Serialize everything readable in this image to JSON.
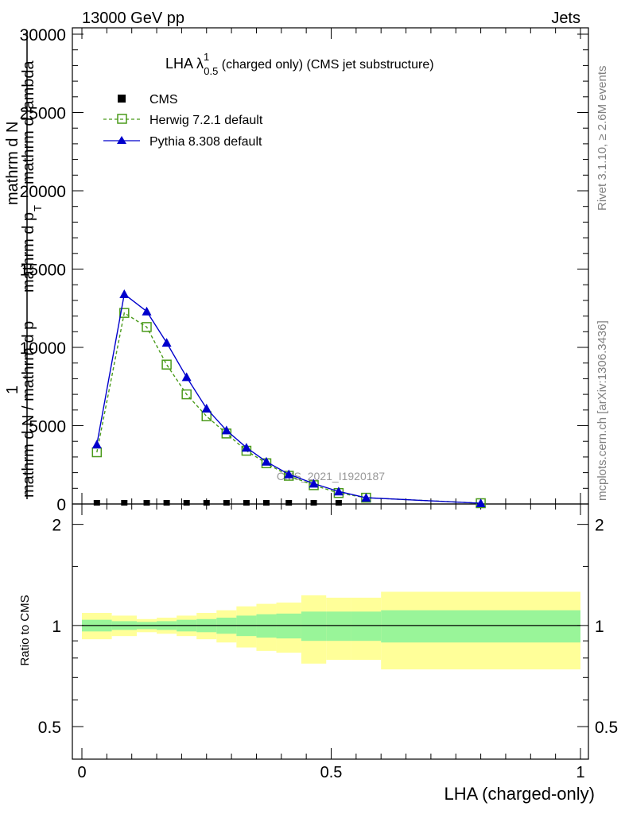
{
  "header": {
    "left": "13000 GeV pp",
    "right": "Jets"
  },
  "side_text": {
    "rivet": "Rivet 3.1.10, ≥ 2.6M events",
    "mcplots": "mcplots.cern.ch [arXiv:1306.3436]"
  },
  "watermark": "CMS_2021_I1920187",
  "chart_data": {
    "type": "line",
    "title_main": "LHA λ",
    "title_sup": "1",
    "title_sub": "0.5",
    "title_rest": " (charged only) (CMS jet substructure)",
    "ylabel_top": "mathrm d",
    "ylabel_top2": "N",
    "ylabel_bottom": "mathrm d p",
    "ylabel_bottom2": "mathrm d lambda",
    "ylabel_sub": "T",
    "ylabel_one": "1",
    "ylabel_denominator": "mathrm d N / mathrm d p",
    "xlabel": "LHA (charged-only)",
    "ratio_ylabel": "Ratio to CMS",
    "xlim": [
      0,
      1
    ],
    "ylim": [
      0,
      30000
    ],
    "ratio_ylim": [
      0.4,
      2.3
    ],
    "x_ticks": [
      "0",
      "0.5",
      "1"
    ],
    "y_ticks": [
      "0",
      "5000",
      "10000",
      "15000",
      "20000",
      "25000",
      "30000"
    ],
    "ratio_ticks": [
      "0.5",
      "1",
      "2"
    ],
    "legend_placement": "top-left",
    "series": [
      {
        "name": "CMS",
        "color": "#000000",
        "x": [
          0.03,
          0.085,
          0.13,
          0.17,
          0.21,
          0.25,
          0.29,
          0.33,
          0.37,
          0.415,
          0.465,
          0.515
        ],
        "values": [
          0,
          0,
          0,
          0,
          0,
          0,
          0,
          0,
          0,
          0,
          0,
          0
        ]
      },
      {
        "name": "Herwig 7.2.1 default",
        "color": "#4a9a1a",
        "x": [
          0.03,
          0.085,
          0.13,
          0.17,
          0.21,
          0.25,
          0.29,
          0.33,
          0.37,
          0.415,
          0.465,
          0.515,
          0.57,
          0.8
        ],
        "values": [
          3300,
          12200,
          11300,
          8900,
          7000,
          5600,
          4500,
          3400,
          2600,
          1800,
          1200,
          700,
          400,
          50
        ]
      },
      {
        "name": "Pythia 8.308 default",
        "color": "#0000cc",
        "x": [
          0.03,
          0.085,
          0.13,
          0.17,
          0.21,
          0.25,
          0.29,
          0.33,
          0.37,
          0.415,
          0.465,
          0.515,
          0.57,
          0.8
        ],
        "values": [
          3800,
          13400,
          12300,
          10300,
          8100,
          6100,
          4700,
          3600,
          2700,
          1900,
          1300,
          800,
          400,
          50
        ]
      }
    ],
    "ratio_bands": {
      "edges": [
        0,
        0.06,
        0.11,
        0.15,
        0.19,
        0.23,
        0.27,
        0.31,
        0.35,
        0.39,
        0.44,
        0.49,
        0.54,
        0.6,
        1.0
      ],
      "inner_low": [
        0.96,
        0.97,
        0.975,
        0.97,
        0.96,
        0.955,
        0.945,
        0.93,
        0.92,
        0.915,
        0.9,
        0.9,
        0.9,
        0.89
      ],
      "inner_high": [
        1.04,
        1.03,
        1.025,
        1.03,
        1.04,
        1.045,
        1.055,
        1.07,
        1.08,
        1.085,
        1.1,
        1.1,
        1.1,
        1.11
      ],
      "outer_low": [
        0.91,
        0.93,
        0.955,
        0.945,
        0.93,
        0.91,
        0.89,
        0.86,
        0.84,
        0.83,
        0.77,
        0.79,
        0.79,
        0.74
      ],
      "outer_high": [
        1.09,
        1.07,
        1.045,
        1.055,
        1.07,
        1.09,
        1.11,
        1.14,
        1.16,
        1.17,
        1.23,
        1.21,
        1.21,
        1.26
      ],
      "inner_color": "#99f599",
      "outer_color": "#ffff99"
    }
  }
}
